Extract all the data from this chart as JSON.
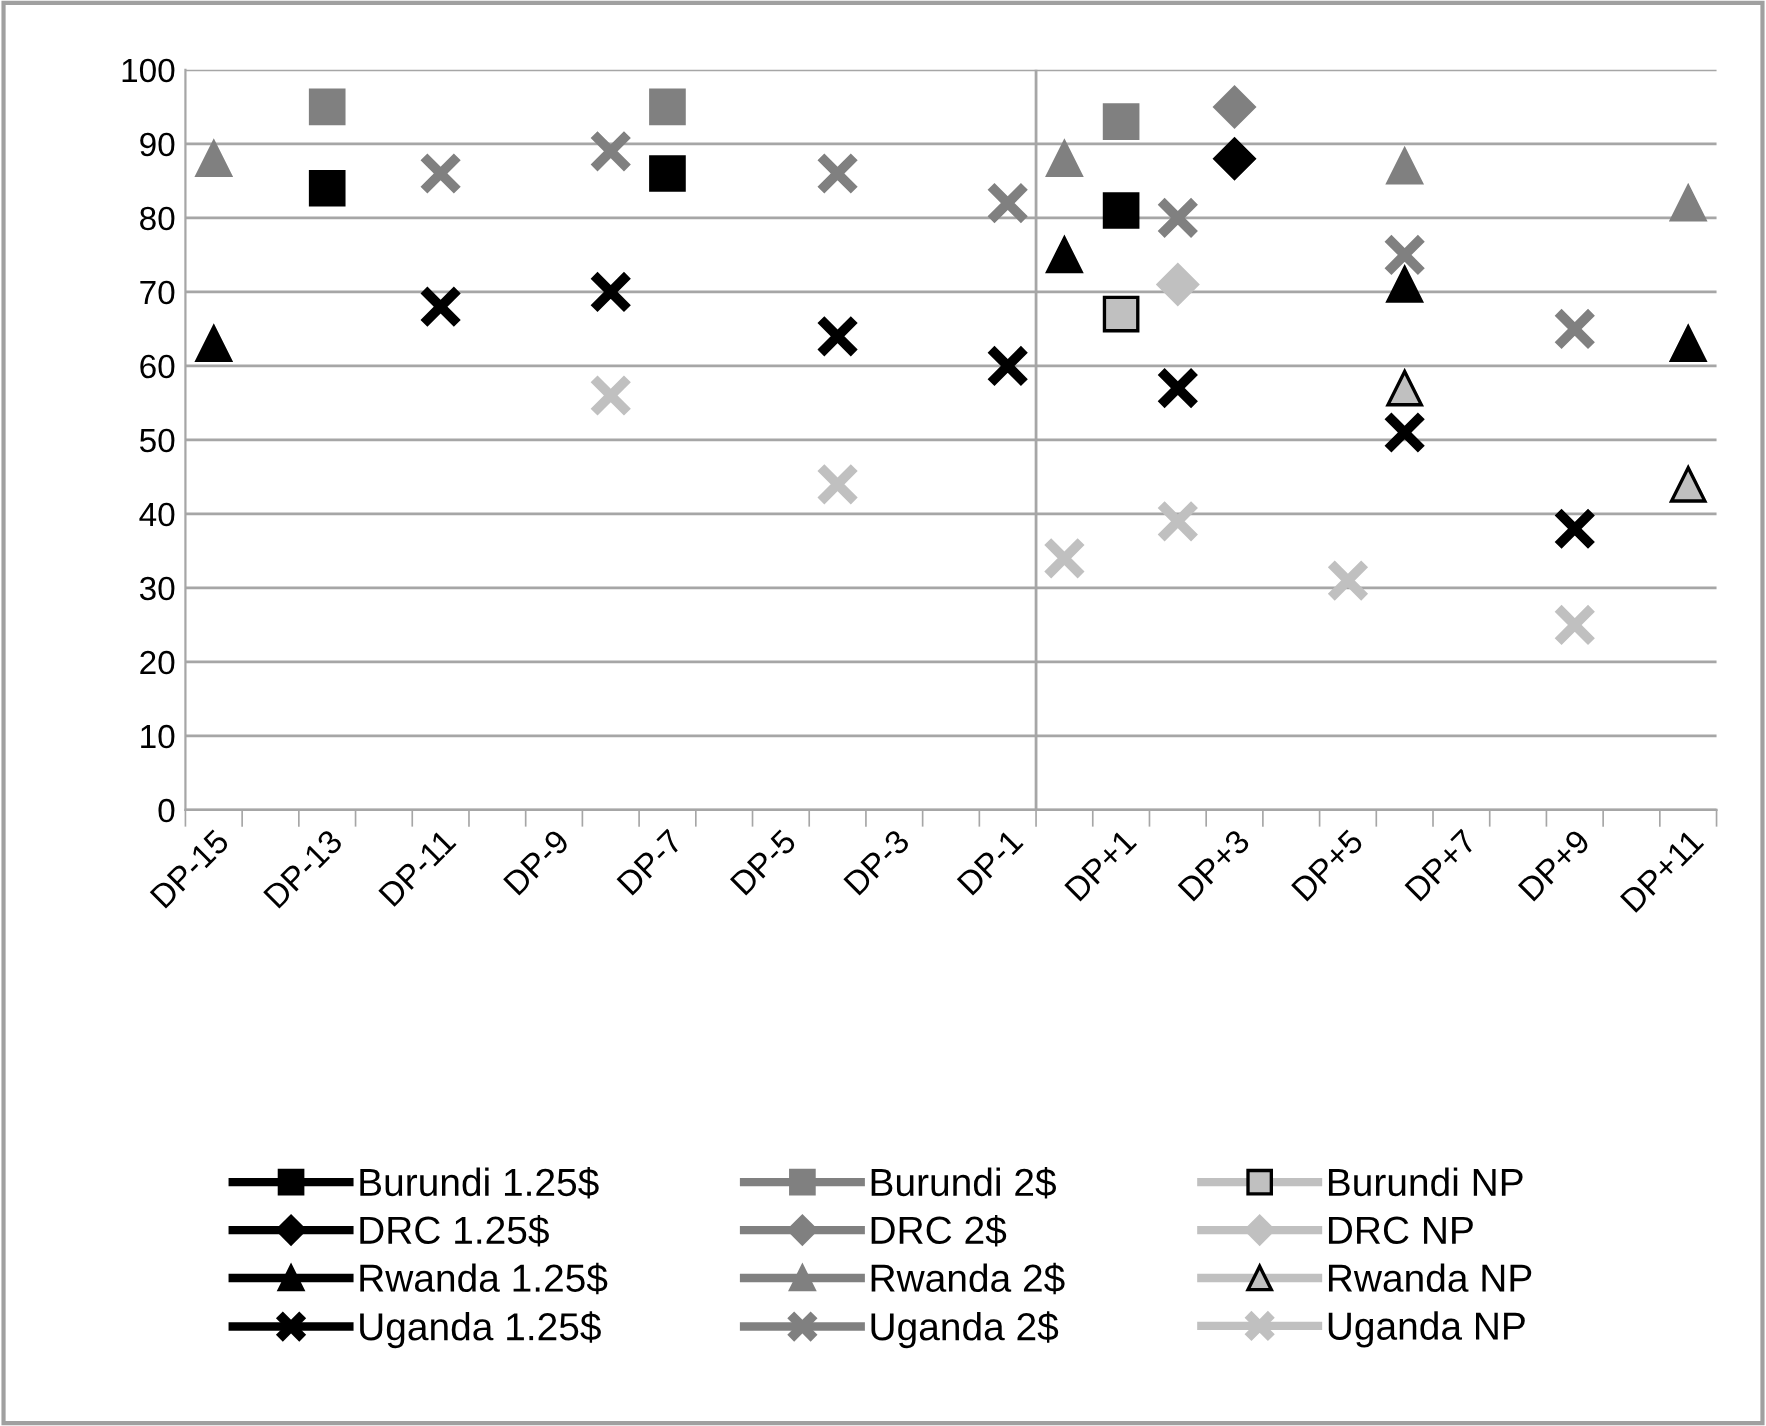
{
  "chart_data": {
    "type": "line",
    "categories": [
      "DP-15",
      null,
      "DP-13",
      null,
      "DP-11",
      null,
      "DP-9",
      null,
      "DP-7",
      null,
      "DP-5",
      null,
      "DP-3",
      null,
      "DP-1",
      null,
      "DP+1",
      null,
      "DP+3",
      null,
      "DP+5",
      null,
      "DP+7",
      null,
      "DP+9",
      null,
      "DP+11"
    ],
    "ylim": [
      0,
      100
    ],
    "yticks": [
      0,
      10,
      20,
      30,
      40,
      50,
      60,
      70,
      80,
      90,
      100
    ],
    "grid": "y",
    "legend": "bottom",
    "series": [
      {
        "name": "Burundi 1.25$",
        "color": "#000000",
        "marker": "square",
        "values": [
          null,
          null,
          84,
          null,
          null,
          null,
          null,
          null,
          86,
          null,
          null,
          null,
          null,
          null,
          null,
          null,
          81,
          null,
          null,
          null,
          null,
          null,
          null,
          null,
          null,
          null,
          null
        ]
      },
      {
        "name": "Burundi 2$",
        "color": "#808080",
        "marker": "square",
        "values": [
          null,
          null,
          95,
          null,
          null,
          null,
          null,
          null,
          95,
          null,
          null,
          null,
          null,
          null,
          null,
          null,
          93,
          null,
          null,
          null,
          null,
          null,
          null,
          null,
          null,
          null,
          null
        ]
      },
      {
        "name": "Burundi NP",
        "color": "#c0c0c0",
        "marker": "square",
        "values": [
          null,
          null,
          null,
          null,
          null,
          null,
          null,
          null,
          null,
          null,
          null,
          null,
          null,
          null,
          null,
          null,
          67,
          null,
          null,
          null,
          null,
          null,
          null,
          null,
          null,
          null,
          null
        ]
      },
      {
        "name": "DRC 1.25$",
        "color": "#000000",
        "marker": "diamond",
        "values": [
          null,
          null,
          null,
          null,
          null,
          null,
          null,
          null,
          null,
          null,
          null,
          null,
          null,
          null,
          null,
          null,
          null,
          null,
          88,
          null,
          null,
          null,
          null,
          null,
          null,
          null,
          null
        ]
      },
      {
        "name": "DRC 2$",
        "color": "#808080",
        "marker": "diamond",
        "values": [
          null,
          null,
          null,
          null,
          null,
          null,
          null,
          null,
          null,
          null,
          null,
          null,
          null,
          null,
          null,
          null,
          null,
          null,
          95,
          null,
          null,
          null,
          null,
          null,
          null,
          null,
          null
        ]
      },
      {
        "name": "DRC NP",
        "color": "#c0c0c0",
        "marker": "diamond",
        "values": [
          null,
          null,
          null,
          null,
          null,
          null,
          null,
          null,
          null,
          null,
          null,
          null,
          null,
          null,
          null,
          null,
          null,
          71,
          null,
          null,
          null,
          null,
          null,
          null,
          null,
          null,
          null
        ]
      },
      {
        "name": "Rwanda 1.25$",
        "color": "#000000",
        "marker": "triangle",
        "values": [
          63,
          null,
          null,
          null,
          null,
          null,
          null,
          null,
          null,
          null,
          null,
          null,
          null,
          null,
          null,
          75,
          null,
          null,
          null,
          null,
          null,
          71,
          null,
          null,
          null,
          null,
          63
        ]
      },
      {
        "name": "Rwanda 2$",
        "color": "#808080",
        "marker": "triangle",
        "values": [
          88,
          null,
          null,
          null,
          null,
          null,
          null,
          null,
          null,
          null,
          null,
          null,
          null,
          null,
          null,
          88,
          null,
          null,
          null,
          null,
          null,
          87,
          null,
          null,
          null,
          null,
          82
        ]
      },
      {
        "name": "Rwanda NP",
        "color": "#c0c0c0",
        "marker": "triangle",
        "values": [
          null,
          null,
          null,
          null,
          null,
          null,
          null,
          null,
          null,
          null,
          null,
          null,
          null,
          null,
          null,
          null,
          null,
          null,
          null,
          null,
          null,
          57,
          null,
          null,
          null,
          null,
          44
        ]
      },
      {
        "name": "Uganda 1.25$",
        "color": "#000000",
        "marker": "cross",
        "values": [
          null,
          null,
          null,
          null,
          68,
          null,
          null,
          70,
          null,
          null,
          null,
          64,
          null,
          null,
          60,
          null,
          null,
          57,
          null,
          null,
          null,
          51,
          null,
          null,
          38,
          null,
          null
        ]
      },
      {
        "name": "Uganda 2$",
        "color": "#808080",
        "marker": "cross",
        "values": [
          null,
          null,
          null,
          null,
          86,
          null,
          null,
          89,
          null,
          null,
          null,
          86,
          null,
          null,
          82,
          null,
          null,
          80,
          null,
          null,
          null,
          75,
          null,
          null,
          65,
          null,
          null
        ]
      },
      {
        "name": "Uganda NP",
        "color": "#c0c0c0",
        "marker": "cross",
        "values": [
          null,
          null,
          null,
          null,
          null,
          null,
          null,
          56,
          null,
          null,
          null,
          44,
          null,
          null,
          null,
          34,
          null,
          39,
          null,
          null,
          31,
          null,
          null,
          null,
          25,
          null,
          null
        ]
      }
    ]
  }
}
